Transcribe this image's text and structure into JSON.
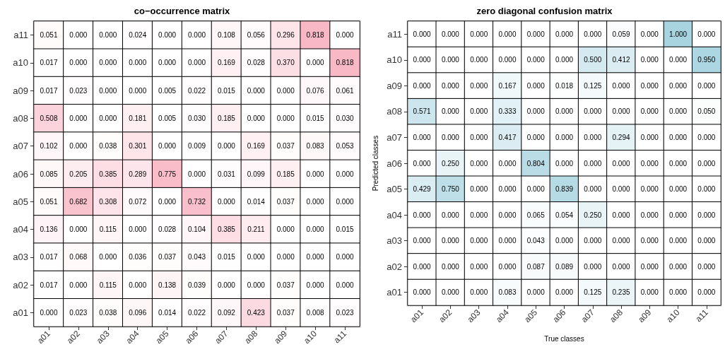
{
  "chart_data": [
    {
      "type": "heatmap",
      "title": "co−occurrence matrix",
      "colors": [
        "#ffffff",
        "#f9b8c6"
      ],
      "categories": [
        "a01",
        "a02",
        "a03",
        "a04",
        "a05",
        "a06",
        "a07",
        "a08",
        "a09",
        "a10",
        "a11"
      ],
      "y_categories": [
        "a11",
        "a10",
        "a09",
        "a08",
        "a07",
        "a06",
        "a05",
        "a04",
        "a03",
        "a02",
        "a01"
      ],
      "cells": [
        [
          0.051,
          0,
          0,
          0.024,
          0,
          0,
          0.108,
          0.056,
          0.296,
          0.818,
          0
        ],
        [
          0.017,
          0,
          0,
          0,
          0,
          0,
          0.169,
          0.028,
          0.37,
          0,
          0.818
        ],
        [
          0.017,
          0.023,
          0,
          0,
          0.005,
          0.022,
          0.015,
          0,
          0,
          0.076,
          0.061
        ],
        [
          0.508,
          0,
          0,
          0.181,
          0.005,
          0.03,
          0.185,
          0,
          0,
          0.015,
          0.03
        ],
        [
          0.102,
          0,
          0.038,
          0.301,
          0,
          0.009,
          0,
          0.169,
          0.037,
          0.083,
          0.053
        ],
        [
          0.085,
          0.205,
          0.385,
          0.289,
          0.775,
          0,
          0.031,
          0.099,
          0.185,
          0,
          0
        ],
        [
          0.051,
          0.682,
          0.308,
          0.072,
          0,
          0.732,
          0,
          0.014,
          0.037,
          0,
          0
        ],
        [
          0.136,
          0,
          0.115,
          0,
          0.028,
          0.104,
          0.385,
          0.211,
          0,
          0,
          0.015
        ],
        [
          0.017,
          0.068,
          0,
          0.036,
          0.037,
          0.043,
          0.015,
          0,
          0,
          0,
          0
        ],
        [
          0.017,
          0,
          0.115,
          0,
          0.138,
          0.039,
          0,
          0,
          0.037,
          0,
          0
        ],
        [
          0,
          0.023,
          0.038,
          0.096,
          0.014,
          0.022,
          0.092,
          0.423,
          0.037,
          0.008,
          0.023
        ]
      ],
      "cell_labels": [
        [
          "0.051",
          "0.000",
          "0.000",
          "0.024",
          "0.000",
          "0.000",
          "0.108",
          "0.056",
          "0.296",
          "0.818",
          "0.000"
        ],
        [
          "0.017",
          "0.000",
          "0.000",
          "0.000",
          "0.000",
          "0.000",
          "0.169",
          "0.028",
          "0.370",
          "0.000",
          "0.818"
        ],
        [
          "0.017",
          "0.023",
          "0.000",
          "0.000",
          "0.005",
          "0.022",
          "0.015",
          "0.000",
          "0.000",
          "0.076",
          "0.061"
        ],
        [
          "0.508",
          "0.000",
          "0.000",
          "0.181",
          "0.005",
          "0.030",
          "0.185",
          "0.000",
          "0.000",
          "0.015",
          "0.030"
        ],
        [
          "0.102",
          "0.000",
          "0.038",
          "0.301",
          "0.000",
          "0.009",
          "0.000",
          "0.169",
          "0.037",
          "0.083",
          "0.053"
        ],
        [
          "0.085",
          "0.205",
          "0.385",
          "0.289",
          "0.775",
          "0.000",
          "0.031",
          "0.099",
          "0.185",
          "0.000",
          "0.000"
        ],
        [
          "0.051",
          "0.682",
          "0.308",
          "0.072",
          "0.000",
          "0.732",
          "0.000",
          "0.014",
          "0.037",
          "0.000",
          "0.000"
        ],
        [
          "0.136",
          "0.000",
          "0.115",
          "0.000",
          "0.028",
          "0.104",
          "0.385",
          "0.211",
          "0.000",
          "0.000",
          "0.015"
        ],
        [
          "0.017",
          "0.068",
          "0.000",
          "0.036",
          "0.037",
          "0.043",
          "0.015",
          "0.000",
          "0.000",
          "0.000",
          "0.000"
        ],
        [
          "0.017",
          "0.000",
          "0.115",
          "0.000",
          "0.138",
          "0.039",
          "0.000",
          "0.000",
          "0.037",
          "0.000",
          "0.000"
        ],
        [
          "0.000",
          "0.023",
          "0.038",
          "0.096",
          "0.014",
          "0.022",
          "0.092",
          "0.423",
          "0.037",
          "0.008",
          "0.023"
        ]
      ]
    },
    {
      "type": "heatmap",
      "title": "zero diagonal confusion matrix",
      "xlabel": "True classes",
      "ylabel": "Predicted classes",
      "colors": [
        "#ffffff",
        "#a8d4e0"
      ],
      "categories": [
        "a01",
        "a02",
        "a03",
        "a04",
        "a05",
        "a06",
        "a07",
        "a08",
        "a09",
        "a10",
        "a11"
      ],
      "y_categories": [
        "a11",
        "a10",
        "a09",
        "a08",
        "a07",
        "a06",
        "a05",
        "a04",
        "a03",
        "a02",
        "a01"
      ],
      "cells": [
        [
          0,
          0,
          0,
          0,
          0,
          0,
          0,
          0.059,
          0,
          1,
          0
        ],
        [
          0,
          0,
          0,
          0,
          0,
          0,
          0.5,
          0.412,
          0,
          0,
          0.95
        ],
        [
          0,
          0,
          0,
          0.167,
          0,
          0.018,
          0.125,
          0,
          0,
          0,
          0
        ],
        [
          0.571,
          0,
          0,
          0.333,
          0,
          0,
          0,
          0,
          0,
          0,
          0.05
        ],
        [
          0,
          0,
          0,
          0.417,
          0,
          0,
          0,
          0.294,
          0,
          0,
          0
        ],
        [
          0,
          0.25,
          0,
          0,
          0.804,
          0,
          0,
          0,
          0,
          0,
          0
        ],
        [
          0.429,
          0.75,
          0,
          0,
          0,
          0.839,
          0,
          0,
          0,
          0,
          0
        ],
        [
          0,
          0,
          0,
          0,
          0.065,
          0.054,
          0.25,
          0,
          0,
          0,
          0
        ],
        [
          0,
          0,
          0,
          0,
          0.043,
          0,
          0,
          0,
          0,
          0,
          0
        ],
        [
          0,
          0,
          0,
          0,
          0.087,
          0.089,
          0,
          0,
          0,
          0,
          0
        ],
        [
          0,
          0,
          0,
          0.083,
          0,
          0,
          0.125,
          0.235,
          0,
          0,
          0
        ]
      ],
      "cell_labels": [
        [
          "0.000",
          "0.000",
          "0.000",
          "0.000",
          "0.000",
          "0.000",
          "0.000",
          "0.059",
          "0.000",
          "1.000",
          "0.000"
        ],
        [
          "0.000",
          "0.000",
          "0.000",
          "0.000",
          "0.000",
          "0.000",
          "0.500",
          "0.412",
          "0.000",
          "0.000",
          "0.950"
        ],
        [
          "0.000",
          "0.000",
          "0.000",
          "0.167",
          "0.000",
          "0.018",
          "0.125",
          "0.000",
          "0.000",
          "0.000",
          "0.000"
        ],
        [
          "0.571",
          "0.000",
          "0.000",
          "0.333",
          "0.000",
          "0.000",
          "0.000",
          "0.000",
          "0.000",
          "0.000",
          "0.050"
        ],
        [
          "0.000",
          "0.000",
          "0.000",
          "0.417",
          "0.000",
          "0.000",
          "0.000",
          "0.294",
          "0.000",
          "0.000",
          "0.000"
        ],
        [
          "0.000",
          "0.250",
          "0.000",
          "0.000",
          "0.804",
          "0.000",
          "0.000",
          "0.000",
          "0.000",
          "0.000",
          "0.000"
        ],
        [
          "0.429",
          "0.750",
          "0.000",
          "0.000",
          "0.000",
          "0.839",
          "0.000",
          "0.000",
          "0.000",
          "0.000",
          "0.000"
        ],
        [
          "0.000",
          "0.000",
          "0.000",
          "0.000",
          "0.065",
          "0.054",
          "0.250",
          "0.000",
          "0.000",
          "0.000",
          "0.000"
        ],
        [
          "0.000",
          "0.000",
          "0.000",
          "0.000",
          "0.043",
          "0.000",
          "0.000",
          "0.000",
          "0.000",
          "0.000",
          "0.000"
        ],
        [
          "0.000",
          "0.000",
          "0.000",
          "0.000",
          "0.087",
          "0.089",
          "0.000",
          "0.000",
          "0.000",
          "0.000",
          "0.000"
        ],
        [
          "0.000",
          "0.000",
          "0.000",
          "0.083",
          "0.000",
          "0.000",
          "0.125",
          "0.235",
          "0.000",
          "0.000",
          "0.000"
        ]
      ]
    }
  ]
}
